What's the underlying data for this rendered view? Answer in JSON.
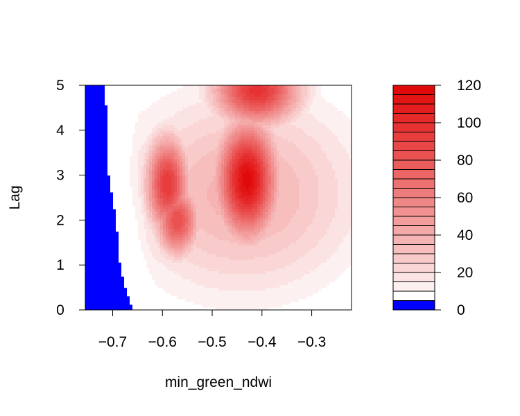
{
  "chart_data": {
    "type": "heatmap",
    "title": "",
    "xlabel": "min_green_ndwi",
    "ylabel": "Lag",
    "xlim": [
      -0.755,
      -0.22
    ],
    "ylim": [
      0,
      5
    ],
    "x_ticks": [
      -0.7,
      -0.6,
      -0.5,
      -0.4,
      -0.3
    ],
    "x_tick_labels": [
      "−0.7",
      "−0.6",
      "−0.5",
      "−0.4",
      "−0.3"
    ],
    "y_ticks": [
      0,
      1,
      2,
      3,
      4,
      5
    ],
    "y_tick_labels": [
      "0",
      "1",
      "2",
      "3",
      "4",
      "5"
    ],
    "colorbar": {
      "range": [
        0,
        120
      ],
      "ticks": [
        0,
        20,
        40,
        60,
        80,
        100,
        120
      ],
      "tick_labels": [
        "0",
        "20",
        "40",
        "60",
        "80",
        "100",
        "120"
      ],
      "levels": [
        0,
        5,
        10,
        15,
        20,
        25,
        30,
        35,
        40,
        45,
        50,
        55,
        60,
        65,
        70,
        75,
        80,
        85,
        90,
        95,
        100,
        105,
        110,
        115,
        120
      ],
      "lowest_band_color": "#0000ff",
      "low_color": "#ffffff",
      "high_color": "#e00000"
    },
    "surface": {
      "description_of_values": "filled contour of response over min_green_ndwi and Lag",
      "peaks": [
        {
          "x": -0.43,
          "lag": 2.9,
          "value": 118
        },
        {
          "x": -0.41,
          "lag": 4.9,
          "value": 98
        },
        {
          "x": -0.59,
          "lag": 2.8,
          "value": 95
        },
        {
          "x": -0.57,
          "lag": 2.0,
          "value": 85
        }
      ],
      "negative_region_boundary": [
        {
          "lag": 0.0,
          "x": -0.66
        },
        {
          "lag": 0.5,
          "x": -0.675
        },
        {
          "lag": 1.0,
          "x": -0.685
        },
        {
          "lag": 1.5,
          "x": -0.69
        },
        {
          "lag": 2.0,
          "x": -0.692
        },
        {
          "lag": 2.5,
          "x": -0.7
        },
        {
          "lag": 3.0,
          "x": -0.708
        },
        {
          "lag": 3.5,
          "x": -0.71
        },
        {
          "lag": 4.0,
          "x": -0.712
        },
        {
          "lag": 4.5,
          "x": -0.713
        },
        {
          "lag": 5.0,
          "x": -0.715
        }
      ],
      "zero_white_gap_x": [
        -0.715,
        -0.65
      ]
    }
  }
}
